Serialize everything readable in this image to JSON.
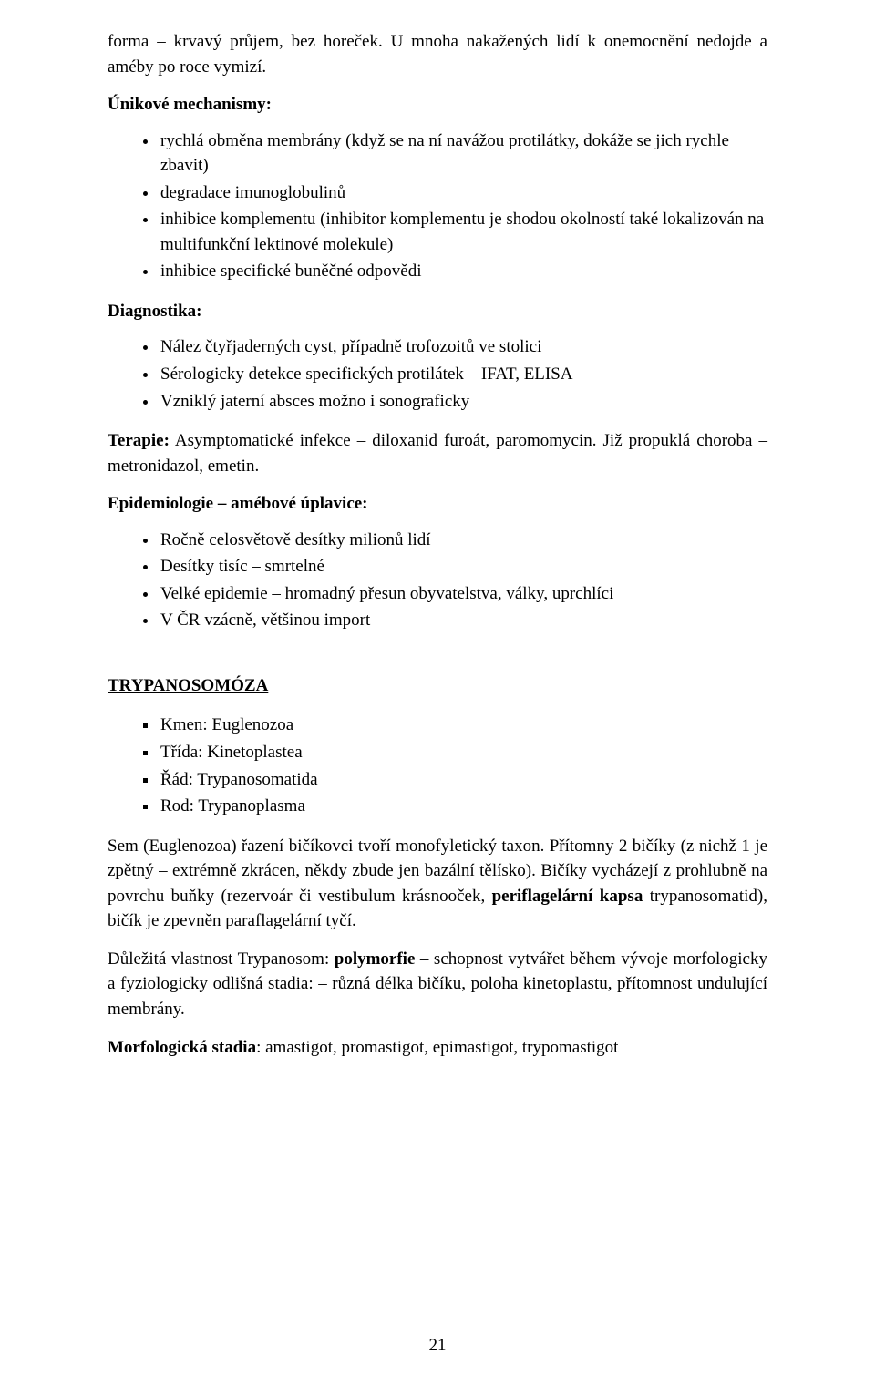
{
  "intro_paragraph": "forma – krvavý průjem, bez horeček. U mnoha nakažených lidí k onemocnění nedojde a améby po roce vymizí.",
  "escape_heading": "Únikové mechanismy:",
  "escape_items": [
    "rychlá obměna membrány (když se na ní navážou protilátky, dokáže se jich rychle zbavit)",
    "degradace imunoglobulinů",
    "inhibice komplementu (inhibitor komplementu je shodou okolností také lokalizován na multifunkční lektinové molekule)",
    "inhibice specifické buněčné odpovědi"
  ],
  "diagnostics_heading": "Diagnostika:",
  "diagnostics_items": [
    "Nález čtyřjaderných cyst, případně trofozoitů ve stolici",
    "Sérologicky detekce specifických protilátek – IFAT, ELISA",
    "Vzniklý jaterní absces možno i sonograficky"
  ],
  "therapy_label": "Terapie:",
  "therapy_text": " Asymptomatické infekce – diloxanid furoát, paromomycin. Již propuklá choroba – metronidazol, emetin.",
  "epidemiology_heading": "Epidemiologie – amébové úplavice:",
  "epidemiology_items": [
    "Ročně celosvětově desítky milionů lidí",
    "Desítky tisíc – smrtelné",
    "Velké epidemie – hromadný přesun obyvatelstva, války, uprchlíci",
    "V ČR vzácně, většinou import"
  ],
  "trypanosoma_heading": "TRYPANOSOMÓZA",
  "taxonomy_items": [
    "Kmen: Euglenozoa",
    "Třída: Kinetoplastea",
    "Řád: Trypanosomatida",
    "Rod: Trypanoplasma"
  ],
  "euglenozoa_pre": "Sem (Euglenozoa) řazení bičíkovci tvoří monofyletický taxon. Přítomny 2 bičíky (z nichž 1 je zpětný – extrémně zkrácen, někdy zbude jen bazální tělísko). Bičíky vycházejí z prohlubně na povrchu buňky (rezervoár či vestibulum krásnooček, ",
  "euglenozoa_bold": "periflagelární kapsa",
  "euglenozoa_post": " trypanosomatid), bičík je zpevněn paraflagelární tyčí.",
  "polymorphism_pre": "Důležitá vlastnost Trypanosom: ",
  "polymorphism_bold": "polymorfie",
  "polymorphism_post": " – schopnost vytvářet během vývoje morfologicky a fyziologicky odlišná stadia: – různá délka bičíku, poloha kinetoplastu, přítomnost undulující membrány.",
  "morpho_label": "Morfologická stadia",
  "morpho_text": ": amastigot, promastigot, epimastigot, trypomastigot",
  "page_number": "21"
}
